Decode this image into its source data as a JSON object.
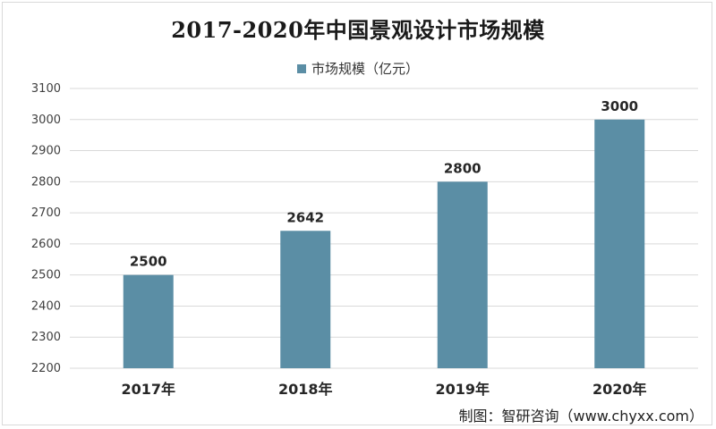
{
  "chart_data": {
    "type": "bar",
    "title": "2017-2020年中国景观设计市场规模",
    "categories": [
      "2017年",
      "2018年",
      "2019年",
      "2020年"
    ],
    "series": [
      {
        "name": "市场规模（亿元）",
        "values": [
          2500,
          2642,
          2800,
          3000
        ]
      }
    ],
    "data_labels": [
      "2500",
      "2642",
      "2800",
      "3000"
    ],
    "ylim": [
      2200,
      3100
    ],
    "yticks": [
      2200,
      2300,
      2400,
      2500,
      2600,
      2700,
      2800,
      2900,
      3000,
      3100
    ],
    "ytick_labels": [
      "2200",
      "2300",
      "2400",
      "2500",
      "2600",
      "2700",
      "2800",
      "2900",
      "3000",
      "3100"
    ],
    "xlabel": "",
    "ylabel": "",
    "grid": true,
    "legend_position": "top-center",
    "bar_color": "#5b8ea5",
    "grid_color": "#d9d9d9"
  },
  "credit": "制图：智研咨询（www.chyxx.com）"
}
